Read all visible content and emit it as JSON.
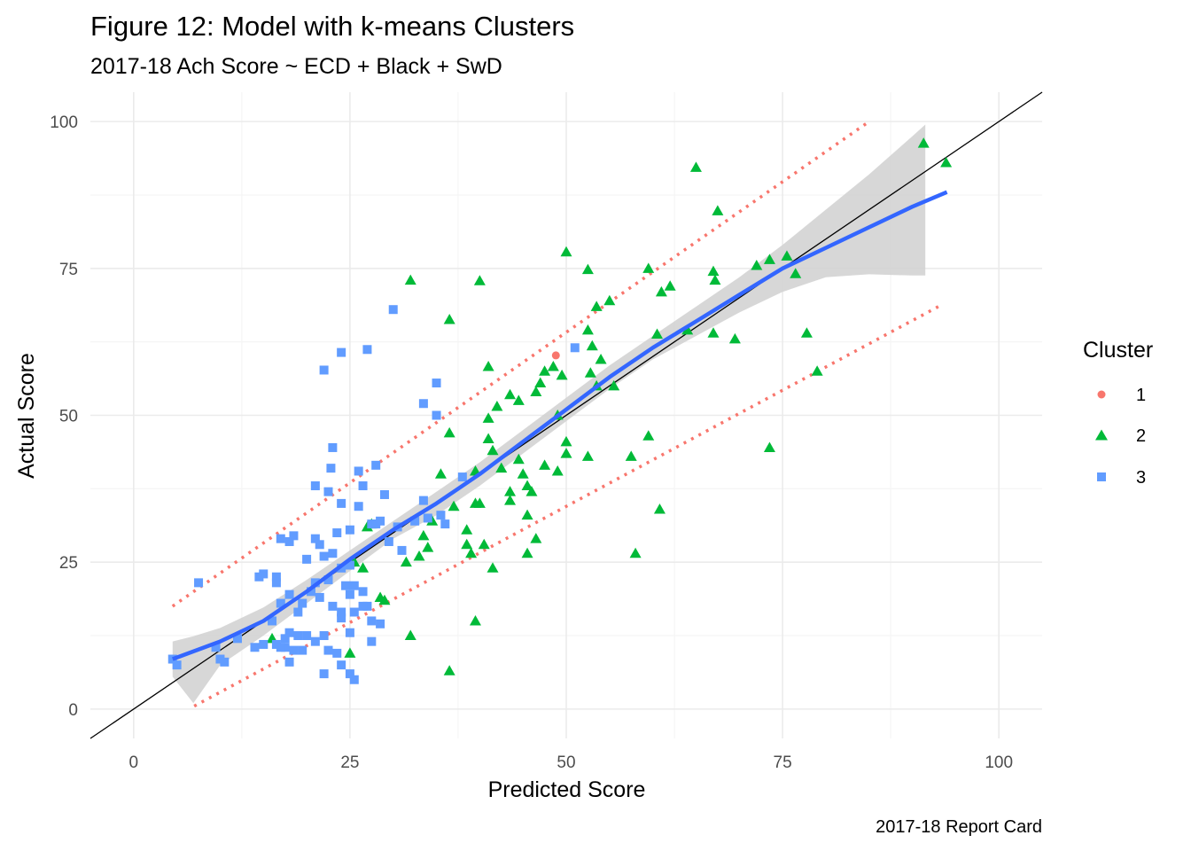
{
  "chart_data": {
    "type": "scatter",
    "title": "Figure 12: Model with k-means Clusters",
    "subtitle": "2017-18 Ach Score ~ ECD + Black + SwD",
    "xlabel": "Predicted Score",
    "ylabel": "Actual Score",
    "caption": "2017-18 Report Card",
    "xlim": [
      -5,
      105
    ],
    "ylim": [
      -5,
      105
    ],
    "x_ticks": [
      "0",
      "25",
      "50",
      "75",
      "100"
    ],
    "y_ticks": [
      "0",
      "25",
      "50",
      "75",
      "100"
    ],
    "x_tick_values": [
      0,
      25,
      50,
      75,
      100
    ],
    "y_tick_values": [
      0,
      25,
      50,
      75,
      100
    ],
    "grid": true,
    "legend": {
      "title": "Cluster",
      "placement": "right"
    },
    "colors": {
      "cluster1": "#F8766D",
      "cluster2": "#00BA38",
      "cluster3": "#619CFF",
      "smooth": "#3366FF",
      "band": "#d3d3d3",
      "identity": "#000000",
      "pred_interval": "#F8766D",
      "grid_major": "#ebebeb",
      "grid_minor": "#f5f5f5"
    },
    "series": [
      {
        "name": "1",
        "shape": "circle",
        "points": [
          [
            48.8,
            60.2
          ]
        ]
      },
      {
        "name": "2",
        "shape": "triangle",
        "points": [
          [
            91.3,
            96.3
          ],
          [
            93.9,
            93.0
          ],
          [
            65,
            92.2
          ],
          [
            67.5,
            84.8
          ],
          [
            50,
            77.8
          ],
          [
            72,
            75.5
          ],
          [
            73.5,
            76.5
          ],
          [
            75.5,
            77.1
          ],
          [
            76.5,
            74.1
          ],
          [
            52.5,
            74.8
          ],
          [
            59.5,
            75.0
          ],
          [
            61,
            71.0
          ],
          [
            62,
            72.0
          ],
          [
            67,
            74.5
          ],
          [
            67.2,
            73.0
          ],
          [
            32,
            73.0
          ],
          [
            40,
            72.9
          ],
          [
            36.5,
            66.3
          ],
          [
            53.5,
            68.5
          ],
          [
            55,
            69.5
          ],
          [
            60.5,
            63.8
          ],
          [
            64,
            64.5
          ],
          [
            67,
            64.0
          ],
          [
            69.5,
            63.0
          ],
          [
            77.8,
            64.0
          ],
          [
            79.0,
            57.5
          ],
          [
            52.5,
            64.5
          ],
          [
            53,
            61.8
          ],
          [
            54,
            59.5
          ],
          [
            48.5,
            58.3
          ],
          [
            47.5,
            57.5
          ],
          [
            49.5,
            56.8
          ],
          [
            52.8,
            57.2
          ],
          [
            41,
            58.3
          ],
          [
            43.5,
            53.5
          ],
          [
            42,
            51.5
          ],
          [
            44.5,
            52.5
          ],
          [
            46.5,
            54.0
          ],
          [
            47,
            55.5
          ],
          [
            49,
            50.0
          ],
          [
            50,
            45.5
          ],
          [
            50,
            43.5
          ],
          [
            52.5,
            43.0
          ],
          [
            41,
            49.5
          ],
          [
            41.5,
            44.0
          ],
          [
            42.5,
            41.0
          ],
          [
            39.5,
            40.5
          ],
          [
            41,
            46.0
          ],
          [
            44.5,
            42.5
          ],
          [
            45,
            40.0
          ],
          [
            45.5,
            38.0
          ],
          [
            46,
            37.0
          ],
          [
            47.5,
            41.5
          ],
          [
            49,
            40.5
          ],
          [
            53.5,
            55.0
          ],
          [
            55.5,
            55.0
          ],
          [
            57.5,
            43.0
          ],
          [
            59.5,
            46.5
          ],
          [
            60.8,
            34.0
          ],
          [
            58,
            26.5
          ],
          [
            73.5,
            44.5
          ],
          [
            36.5,
            47.0
          ],
          [
            35.5,
            40.0
          ],
          [
            37,
            34.5
          ],
          [
            39.5,
            35.0
          ],
          [
            40,
            35.0
          ],
          [
            43.5,
            37.0
          ],
          [
            43.5,
            35.5
          ],
          [
            45.5,
            33.0
          ],
          [
            46.5,
            29.0
          ],
          [
            45.5,
            26.5
          ],
          [
            38.5,
            30.5
          ],
          [
            38.5,
            28.0
          ],
          [
            39,
            26.5
          ],
          [
            40.5,
            28.0
          ],
          [
            41.5,
            24.0
          ],
          [
            34.5,
            32.0
          ],
          [
            33.5,
            29.5
          ],
          [
            34,
            27.5
          ],
          [
            33,
            26.0
          ],
          [
            31.5,
            25.0
          ],
          [
            27,
            31.0
          ],
          [
            27.5,
            31.5
          ],
          [
            28.5,
            19.0
          ],
          [
            29,
            18.5
          ],
          [
            26.5,
            24.0
          ],
          [
            25.5,
            25.0
          ],
          [
            16,
            12.0
          ],
          [
            25,
            9.5
          ],
          [
            32,
            12.5
          ],
          [
            36.5,
            6.5
          ],
          [
            39.5,
            15.0
          ]
        ]
      },
      {
        "name": "3",
        "shape": "square",
        "points": [
          [
            30,
            68.0
          ],
          [
            22,
            57.7
          ],
          [
            24,
            60.7
          ],
          [
            27,
            61.2
          ],
          [
            51,
            61.5
          ],
          [
            35,
            55.5
          ],
          [
            33.5,
            52.0
          ],
          [
            35,
            50.0
          ],
          [
            21,
            38.0
          ],
          [
            22.5,
            37.0
          ],
          [
            23,
            44.5
          ],
          [
            22.8,
            41.0
          ],
          [
            26,
            40.5
          ],
          [
            26.5,
            38.0
          ],
          [
            28,
            41.5
          ],
          [
            29,
            36.5
          ],
          [
            24,
            35.0
          ],
          [
            26,
            34.5
          ],
          [
            23.5,
            30.0
          ],
          [
            25,
            30.5
          ],
          [
            27.5,
            31.5
          ],
          [
            28,
            31.5
          ],
          [
            28.5,
            32.0
          ],
          [
            30.5,
            31.0
          ],
          [
            31,
            27.0
          ],
          [
            32.5,
            32.0
          ],
          [
            33.5,
            35.5
          ],
          [
            34,
            32.5
          ],
          [
            35.5,
            33.0
          ],
          [
            36,
            31.5
          ],
          [
            20,
            25.5
          ],
          [
            21,
            29.0
          ],
          [
            21.5,
            28.0
          ],
          [
            22,
            26.0
          ],
          [
            22.5,
            22.0
          ],
          [
            23,
            26.5
          ],
          [
            24,
            24.0
          ],
          [
            25,
            24.5
          ],
          [
            24.5,
            21.0
          ],
          [
            25,
            19.5
          ],
          [
            25.5,
            21.0
          ],
          [
            26.5,
            20.0
          ],
          [
            27,
            17.5
          ],
          [
            27.5,
            15.0
          ],
          [
            28.5,
            14.5
          ],
          [
            29.5,
            28.5
          ],
          [
            17,
            29.0
          ],
          [
            18,
            28.5
          ],
          [
            18.5,
            29.5
          ],
          [
            15,
            23.0
          ],
          [
            14.5,
            22.5
          ],
          [
            16.5,
            22.5
          ],
          [
            16.5,
            21.5
          ],
          [
            17,
            18.0
          ],
          [
            18,
            19.5
          ],
          [
            19,
            16.5
          ],
          [
            19.5,
            18.0
          ],
          [
            20.5,
            20.0
          ],
          [
            21,
            21.5
          ],
          [
            21.5,
            19.0
          ],
          [
            23,
            17.5
          ],
          [
            24,
            16.5
          ],
          [
            25.5,
            16.5
          ],
          [
            26.5,
            17.5
          ],
          [
            27.5,
            11.5
          ],
          [
            16,
            15.0
          ],
          [
            17.5,
            12.0
          ],
          [
            18,
            13.0
          ],
          [
            19,
            12.5
          ],
          [
            20,
            12.5
          ],
          [
            21,
            11.5
          ],
          [
            22,
            12.5
          ],
          [
            24,
            15.5
          ],
          [
            25,
            13.0
          ],
          [
            15,
            11.0
          ],
          [
            16.5,
            11.0
          ],
          [
            17.5,
            10.5
          ],
          [
            18.5,
            10.0
          ],
          [
            19.5,
            10.0
          ],
          [
            22.5,
            10.0
          ],
          [
            23.5,
            9.5
          ],
          [
            18,
            8.0
          ],
          [
            22,
            6.0
          ],
          [
            24,
            7.5
          ],
          [
            25,
            6.0
          ],
          [
            25.5,
            5.0
          ],
          [
            17,
            10.5
          ],
          [
            9.5,
            10.5
          ],
          [
            10,
            8.5
          ],
          [
            10.5,
            8.0
          ],
          [
            4.5,
            8.5
          ],
          [
            5,
            7.5
          ],
          [
            7.5,
            21.5
          ],
          [
            12,
            12.0
          ],
          [
            14,
            10.5
          ],
          [
            38,
            39.5
          ]
        ]
      }
    ],
    "smooth_line": [
      [
        4.5,
        8.5
      ],
      [
        10,
        11.5
      ],
      [
        15,
        15
      ],
      [
        20,
        20
      ],
      [
        25,
        25.5
      ],
      [
        30,
        30.5
      ],
      [
        35,
        35
      ],
      [
        40,
        40
      ],
      [
        45,
        45.5
      ],
      [
        50,
        51
      ],
      [
        55,
        56.5
      ],
      [
        60,
        61.5
      ],
      [
        65,
        66
      ],
      [
        70,
        70.5
      ],
      [
        75,
        75
      ],
      [
        80,
        78.5
      ],
      [
        85,
        82
      ],
      [
        90,
        85.5
      ],
      [
        94,
        88
      ]
    ],
    "smooth_band_upper": [
      [
        4.5,
        11.5
      ],
      [
        6.9,
        12.4
      ],
      [
        10,
        13.8
      ],
      [
        15,
        17.3
      ],
      [
        20,
        22
      ],
      [
        25,
        27
      ],
      [
        30,
        32
      ],
      [
        35,
        37
      ],
      [
        40,
        42
      ],
      [
        45,
        47.5
      ],
      [
        50,
        53
      ],
      [
        55,
        58.5
      ],
      [
        60,
        63.5
      ],
      [
        65,
        68.5
      ],
      [
        70,
        73.5
      ],
      [
        75,
        79
      ],
      [
        80,
        85
      ],
      [
        85,
        91
      ],
      [
        90,
        97.5
      ],
      [
        91.5,
        99.5
      ]
    ],
    "smooth_band_lower": [
      [
        4.5,
        5.5
      ],
      [
        6.9,
        1.0
      ],
      [
        10,
        7.5
      ],
      [
        15,
        12.5
      ],
      [
        20,
        18
      ],
      [
        25,
        23.5
      ],
      [
        30,
        29
      ],
      [
        35,
        33
      ],
      [
        40,
        38
      ],
      [
        45,
        43.5
      ],
      [
        50,
        49
      ],
      [
        55,
        54.5
      ],
      [
        60,
        59.5
      ],
      [
        65,
        63.5
      ],
      [
        70,
        67.5
      ],
      [
        75,
        71
      ],
      [
        80,
        73.5
      ],
      [
        85,
        74
      ],
      [
        90,
        73.8
      ],
      [
        91.5,
        73.8
      ]
    ],
    "pred_upper": [
      [
        4.5,
        17.5
      ],
      [
        85,
        100
      ]
    ],
    "pred_lower": [
      [
        7,
        0.5
      ],
      [
        93,
        68.5
      ]
    ]
  }
}
